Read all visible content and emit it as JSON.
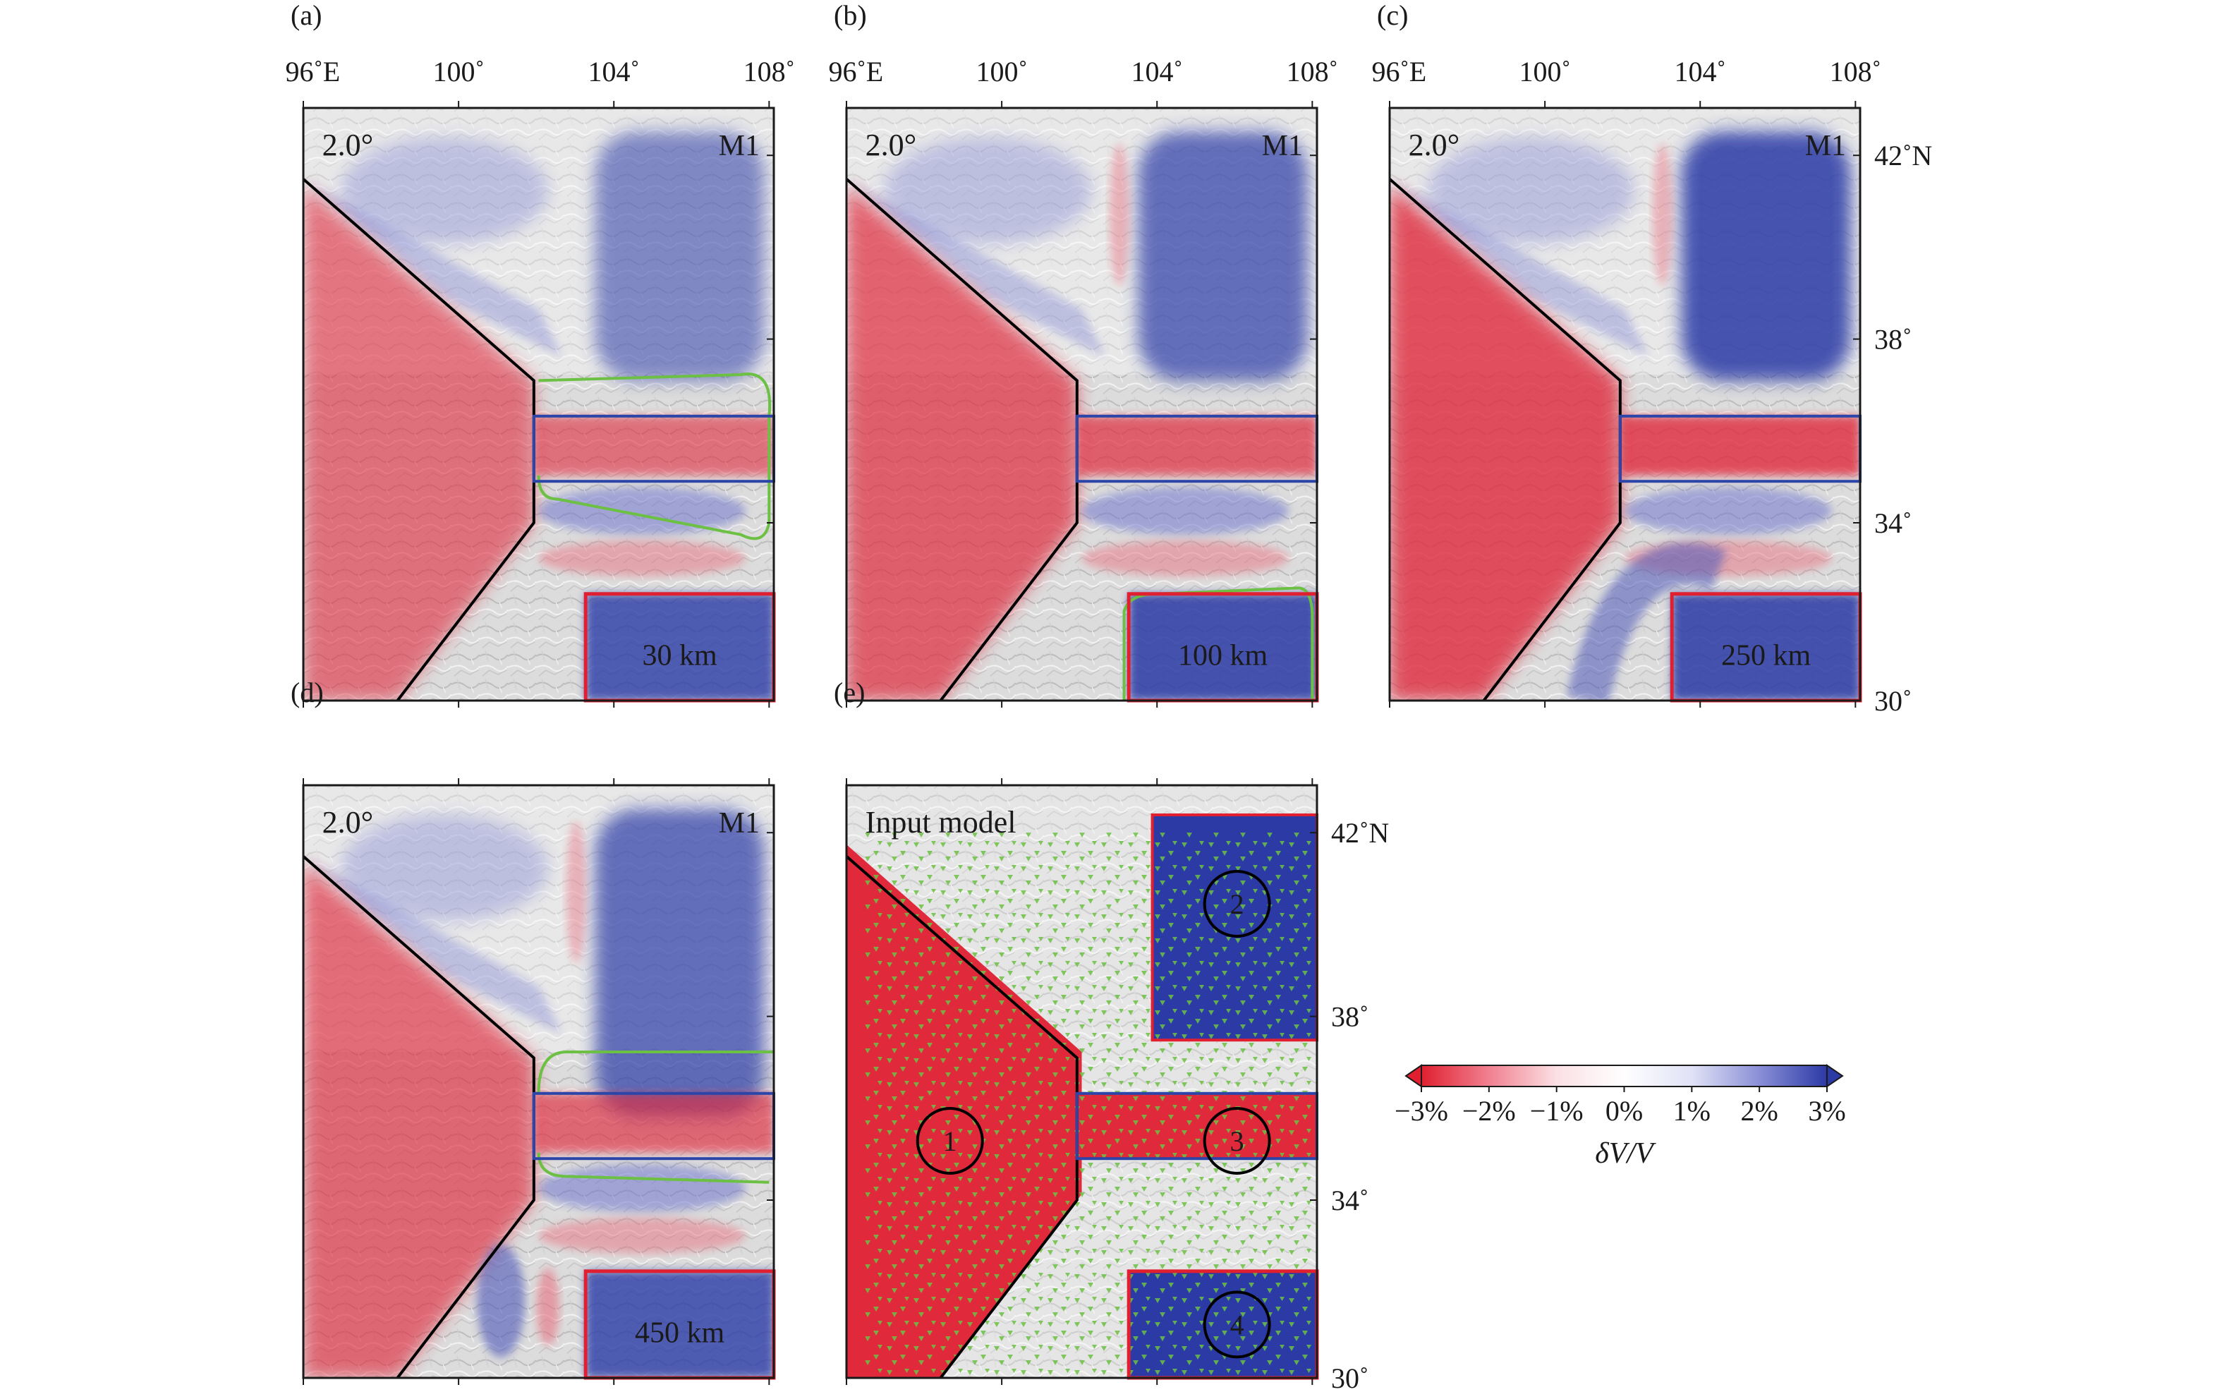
{
  "panels": [
    {
      "letter": "(a)",
      "corner": "2.0°",
      "model": "M1",
      "depth": "30 km",
      "show_top_axis": true,
      "show_right_axis": false,
      "variant": "a"
    },
    {
      "letter": "(b)",
      "corner": "2.0°",
      "model": "M1",
      "depth": "100 km",
      "show_top_axis": true,
      "show_right_axis": false,
      "variant": "b"
    },
    {
      "letter": "(c)",
      "corner": "2.0°",
      "model": "M1",
      "depth": "250 km",
      "show_top_axis": true,
      "show_right_axis": true,
      "variant": "c"
    },
    {
      "letter": "(d)",
      "corner": "2.0°",
      "model": "M1",
      "depth": "450 km",
      "show_top_axis": false,
      "show_right_axis": false,
      "variant": "d"
    },
    {
      "letter": "(e)",
      "corner": "Input model",
      "model": "",
      "depth": "",
      "show_top_axis": false,
      "show_right_axis": true,
      "variant": "e"
    }
  ],
  "longitude_ticks": [
    "96˚E",
    "100˚",
    "104˚",
    "108˚"
  ],
  "latitude_ticks": [
    "42˚N",
    "38˚",
    "34˚",
    "30˚"
  ],
  "input_anomaly_labels": [
    "1",
    "2",
    "3",
    "4"
  ],
  "colorbar": {
    "tick_labels": [
      "−3%",
      "−2%",
      "−1%",
      "0%",
      "1%",
      "2%",
      "3%"
    ],
    "label": "δV/V",
    "stops": [
      "#e02030",
      "#f08090",
      "#fbe0e4",
      "#ffffff",
      "#e0e2f6",
      "#8a8fd6",
      "#2c3aa6"
    ]
  },
  "colors": {
    "slow_red": "#e02a3c",
    "fast_blue": "#2c3aa6",
    "box_red": "#e02030",
    "box_blue": "#2b45a8",
    "contour_green": "#6cc043",
    "stations_green": "#6cc043",
    "boundary_black": "#000000"
  }
}
